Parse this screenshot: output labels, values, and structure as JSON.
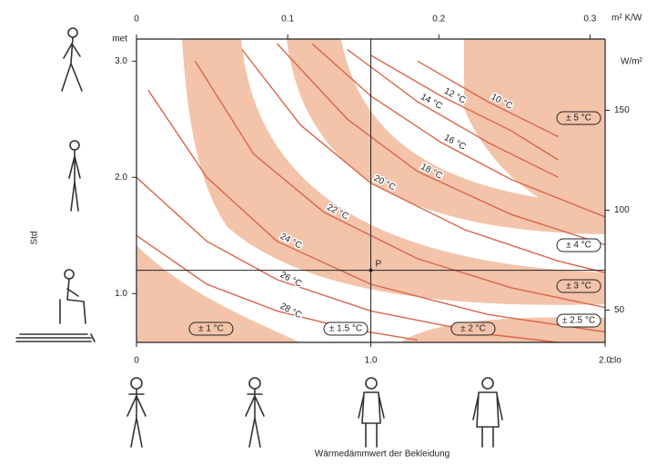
{
  "chart_data": {
    "type": "line",
    "xlabel": "Wärmedämmwert der Bekleidung",
    "ylabel": "Std",
    "x_unit": "clo",
    "y_unit": "met",
    "x2_unit": "m² K/W",
    "y2_unit": "W/m²",
    "xlim": [
      0,
      2
    ],
    "ylim": [
      0.58,
      3.19
    ],
    "x2lim": [
      0,
      0.31
    ],
    "y2lim": [
      33.8,
      185.7
    ],
    "xticks": [
      0,
      {
        "value": 1,
        "label": "1.0"
      },
      {
        "value": 2,
        "label": "2.0"
      }
    ],
    "yticks": [
      {
        "value": 1,
        "label": "1.0"
      },
      {
        "value": 2,
        "label": "2.0"
      },
      {
        "value": 3,
        "label": "3.0"
      }
    ],
    "x2ticks": [
      0,
      0.1,
      0.2,
      0.3
    ],
    "y2ticks": [
      50,
      100,
      150
    ],
    "color": "#d9654a",
    "series": [
      {
        "name": "28 °C",
        "x": [
          0,
          0.3,
          0.6,
          0.9,
          1.2
        ],
        "values": [
          1.5,
          1.08,
          0.85,
          0.7,
          0.6
        ]
      },
      {
        "name": "26 °C",
        "x": [
          0,
          0.3,
          0.6,
          1.0,
          1.5,
          1.8
        ],
        "values": [
          2.0,
          1.45,
          1.12,
          0.85,
          0.65,
          0.58
        ]
      },
      {
        "name": "24 °C",
        "x": [
          0.05,
          0.3,
          0.6,
          1.0,
          1.5,
          2.0
        ],
        "values": [
          2.75,
          2.0,
          1.45,
          1.08,
          0.82,
          0.67
        ]
      },
      {
        "name": "22 °C",
        "x": [
          0.25,
          0.5,
          0.8,
          1.2,
          1.6,
          2.0
        ],
        "values": [
          3.0,
          2.2,
          1.7,
          1.3,
          1.05,
          0.88
        ]
      },
      {
        "name": "20 °C",
        "x": [
          0.45,
          0.7,
          1.0,
          1.4,
          1.8,
          2.0
        ],
        "values": [
          3.1,
          2.45,
          1.95,
          1.55,
          1.28,
          1.18
        ]
      },
      {
        "name": "18 °C",
        "x": [
          0.6,
          0.9,
          1.2,
          1.6,
          2.0
        ],
        "values": [
          3.15,
          2.5,
          2.05,
          1.68,
          1.42
        ]
      },
      {
        "name": "16 °C",
        "x": [
          0.75,
          1.0,
          1.3,
          1.6,
          2.0
        ],
        "values": [
          3.15,
          2.7,
          2.3,
          1.98,
          1.66
        ]
      },
      {
        "name": "14 °C",
        "x": [
          0.9,
          1.2,
          1.5,
          1.8
        ],
        "values": [
          3.1,
          2.65,
          2.3,
          2.0
        ]
      },
      {
        "name": "12 °C",
        "x": [
          1.0,
          1.3,
          1.6,
          1.8
        ],
        "values": [
          3.05,
          2.7,
          2.4,
          2.15
        ]
      },
      {
        "name": "10 °C",
        "x": [
          1.2,
          1.5,
          1.8
        ],
        "values": [
          3.0,
          2.65,
          2.35
        ]
      }
    ],
    "point": {
      "label": "P",
      "x": 1,
      "y": 1.2
    },
    "band_labels": [
      "± 5 °C",
      "± 4 °C",
      "± 3 °C",
      "± 2.5 °C",
      "± 2 °C",
      "± 1.5 °C",
      "± 1 °C"
    ]
  }
}
